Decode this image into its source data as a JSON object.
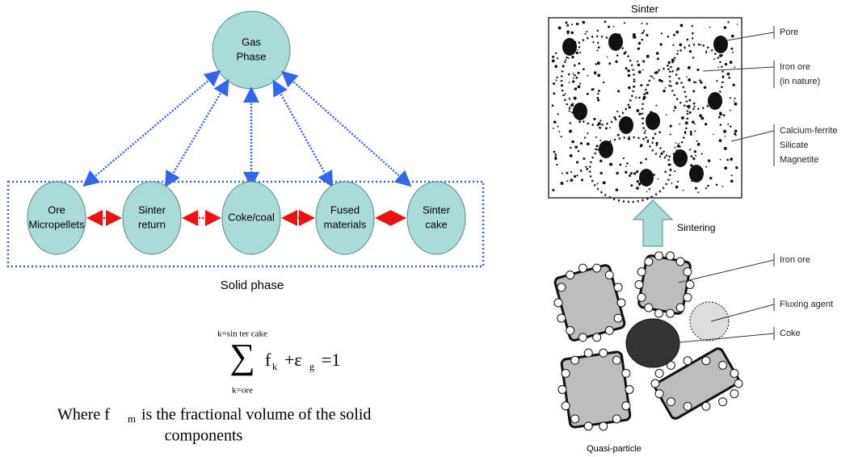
{
  "left_diagram": {
    "gas_node": {
      "lines": [
        "Gas",
        "Phase"
      ]
    },
    "solid_nodes": [
      {
        "lines": [
          "Ore",
          "Micropellets"
        ]
      },
      {
        "lines": [
          "Sinter",
          "return"
        ]
      },
      {
        "lines": [
          "Coke/coal"
        ]
      },
      {
        "lines": [
          "Fused",
          "materials"
        ]
      },
      {
        "lines": [
          "Sinter",
          "cake"
        ]
      }
    ],
    "solid_phase_label": "Solid phase"
  },
  "equation": {
    "upper_limit": "k=sin ter cake",
    "symbol": "∑",
    "lower_limit": "k=ore",
    "terms": [
      "f",
      "k",
      "+ε",
      "g",
      "=1"
    ]
  },
  "caption": {
    "parts": [
      "Where  f",
      "m",
      " is the fractional volume of the solid"
    ],
    "line2": "components"
  },
  "right_diagram": {
    "title": "Sinter",
    "sinter_labels": [
      {
        "lines": [
          "Pore"
        ]
      },
      {
        "lines": [
          "Iron ore",
          "(in nature)"
        ]
      },
      {
        "lines": [
          "Calcium-ferrite",
          "Silicate",
          "Magnetite"
        ]
      }
    ],
    "arrow_label": "Sintering",
    "particle_labels": [
      {
        "lines": [
          "Iron ore"
        ]
      },
      {
        "lines": [
          "Fluxing agent"
        ]
      },
      {
        "lines": [
          "Coke"
        ]
      }
    ],
    "bottom_label": "Quasi-particle"
  }
}
